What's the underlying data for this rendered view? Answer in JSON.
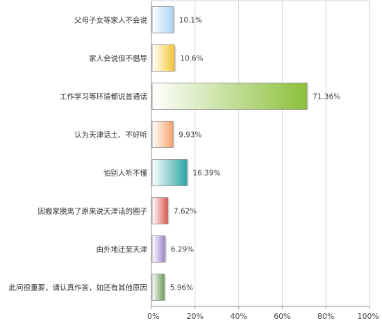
{
  "chart_data": {
    "type": "bar",
    "orientation": "horizontal",
    "categories": [
      "父母子女等家人不会说",
      "家人会说但不倡导",
      "工作学习等环境都说普通话",
      "认为天津话土、不好听",
      "怕别人听不懂",
      "因搬家脱离了原来说天津话的圈子",
      "由外地迁至天津",
      "此问很重要，请认真作答，如还有其他原因"
    ],
    "values": [
      10.1,
      10.6,
      71.36,
      9.93,
      16.39,
      7.62,
      6.29,
      5.96
    ],
    "value_labels": [
      "10.1%",
      "10.6%",
      "71.36%",
      "9.93%",
      "16.39%",
      "7.62%",
      "6.29%",
      "5.96%"
    ],
    "colors": [
      "#a9d2f5",
      "#f3c531",
      "#8bc03a",
      "#f5a36a",
      "#2aa4a4",
      "#d9584f",
      "#9d84c9",
      "#6b9a5a"
    ],
    "xlim": [
      0,
      100
    ],
    "xticks": [
      "0%",
      "20%",
      "40%",
      "60%",
      "80%",
      "100%"
    ],
    "grid": true,
    "title": "",
    "xlabel": "",
    "ylabel": ""
  }
}
